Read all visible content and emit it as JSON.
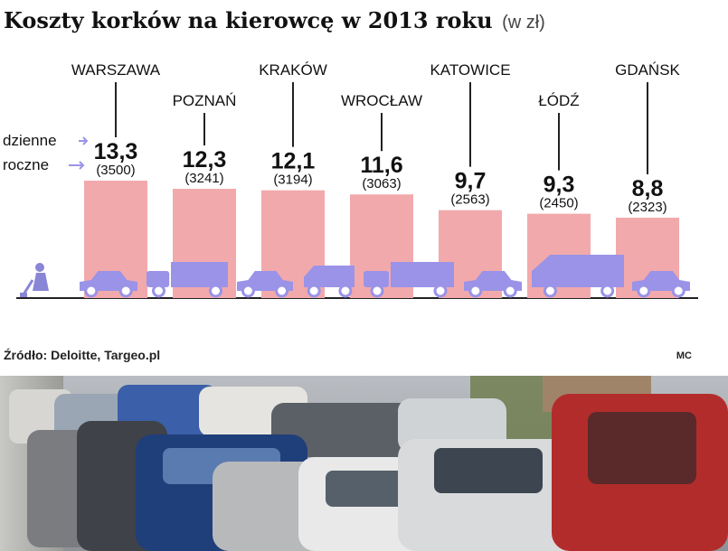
{
  "title": "Koszty korków na kierowcę w 2013 roku",
  "subtitle": "(w zł)",
  "source": "Źródło: Deloitte, Targeo.pl",
  "author": "MC",
  "colors": {
    "bar": "#f2a9ac",
    "vehicle": "#9a93e8",
    "label_text": "#111111",
    "arrow": "#9a93e8",
    "worker": "#8a86d6"
  },
  "icons": [
    "car-icon",
    "truck-icon",
    "van-icon",
    "road-worker-icon"
  ],
  "photo": {
    "description_icon": "parked-cars-photo"
  },
  "chart_data": {
    "type": "bar",
    "title": "Koszty korków na kierowcę w 2013 roku",
    "unit": "(w zł)",
    "series": [
      {
        "name": "dzienne",
        "values": [
          13.3,
          12.3,
          12.1,
          11.6,
          9.7,
          9.3,
          8.8
        ]
      },
      {
        "name": "roczne",
        "values": [
          3500,
          3241,
          3194,
          3063,
          2563,
          2450,
          2323
        ]
      }
    ],
    "categories": [
      "WARSZAWA",
      "POZNAŃ",
      "KRAKÓW",
      "WROCŁAW",
      "KATOWICE",
      "ŁÓDŹ",
      "GDAŃSK"
    ],
    "value_labels": [
      "13,3",
      "12,3",
      "12,1",
      "11,6",
      "9,7",
      "9,3",
      "8,8"
    ],
    "annual_labels": [
      "(3500)",
      "(3241)",
      "(3194)",
      "(3063)",
      "(2563)",
      "(2450)",
      "(2323)"
    ],
    "legend_labels": [
      "dzienne",
      "roczne"
    ],
    "city_label_tier": [
      "high",
      "low",
      "high",
      "low",
      "high",
      "low",
      "high"
    ],
    "ylim": [
      0,
      4000
    ],
    "grid": false,
    "legend_placement": "left"
  }
}
